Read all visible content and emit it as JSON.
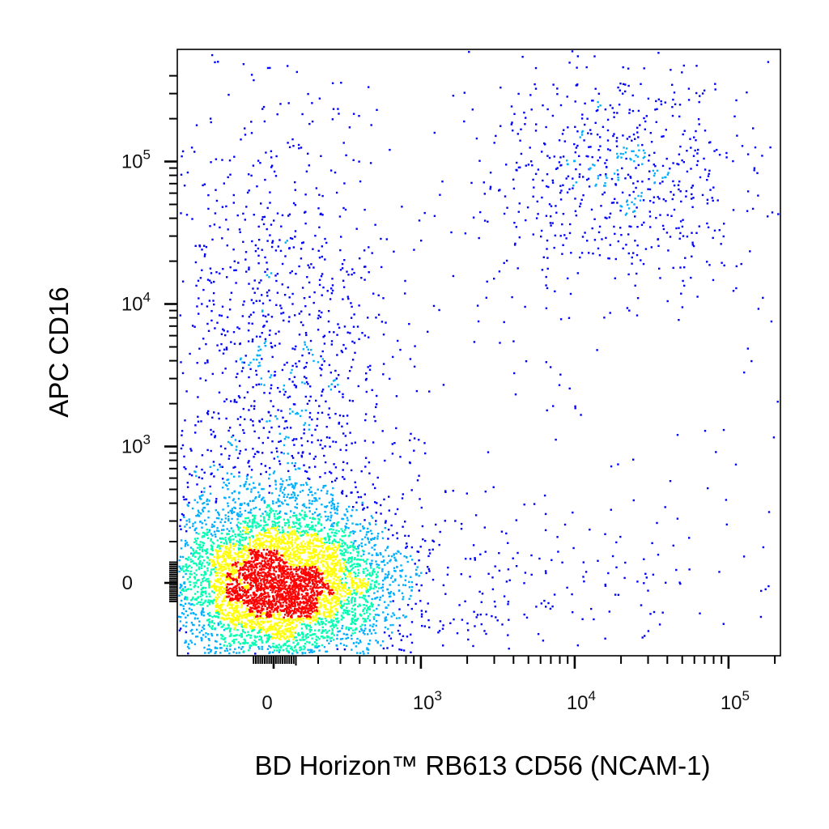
{
  "chart_data": {
    "type": "scatter",
    "subtype": "flow-cytometry-density-dot-plot",
    "title": "",
    "xlabel": "BD Horizon™ RB613 CD56 (NCAM-1)",
    "ylabel": "APC CD16",
    "x_scale": "biexponential",
    "y_scale": "biexponential",
    "xlim": [
      -150,
      200000
    ],
    "ylim": [
      -150,
      400000
    ],
    "grid": false,
    "legend": "none",
    "x_ticks": [
      {
        "value": 0,
        "base": "0",
        "exp": ""
      },
      {
        "value": 1000,
        "base": "10",
        "exp": "3"
      },
      {
        "value": 10000,
        "base": "10",
        "exp": "4"
      },
      {
        "value": 100000,
        "base": "10",
        "exp": "5"
      }
    ],
    "y_ticks": [
      {
        "value": 0,
        "base": "0",
        "exp": ""
      },
      {
        "value": 1000,
        "base": "10",
        "exp": "3"
      },
      {
        "value": 10000,
        "base": "10",
        "exp": "4"
      },
      {
        "value": 100000,
        "base": "10",
        "exp": "5"
      }
    ],
    "density_colormap": [
      "#0000ff",
      "#00b0ff",
      "#00ffb0",
      "#ffff00",
      "#ff0000"
    ],
    "populations": [
      {
        "center": [
          25,
          0
        ],
        "spread": [
          0.38,
          0.3
        ],
        "events": 5200
      },
      {
        "center": [
          30,
          2500
        ],
        "spread": [
          0.4,
          1.0
        ],
        "events": 1300
      },
      {
        "center": [
          20000,
          80000
        ],
        "spread": [
          0.45,
          0.4
        ],
        "events": 650
      },
      {
        "center": [
          1500,
          0
        ],
        "spread": [
          1.0,
          0.28
        ],
        "events": 280
      },
      {
        "center": [
          6000,
          5000
        ],
        "spread": [
          1.9,
          1.4
        ],
        "events": 260
      }
    ]
  }
}
